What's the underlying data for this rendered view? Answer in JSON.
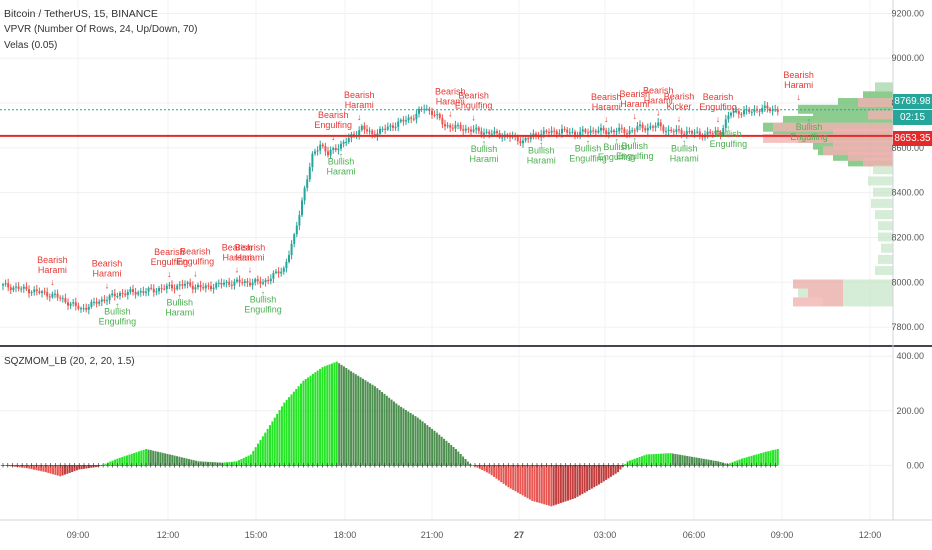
{
  "chart": {
    "title": "Bitcoin / TetherUS, 15, BINANCE",
    "indicators": [
      "VPVR (Number Of Rows, 24, Up/Down, 70)",
      "Velas (0.05)"
    ],
    "price_tags": {
      "last": "8769.98",
      "countdown": "02:15",
      "line": "8653.35"
    },
    "colors": {
      "up": "#26a69a",
      "down": "#ef5350",
      "bullish_label": "#4caf50",
      "bearish_label": "#e53935"
    }
  },
  "oscillator": {
    "title": "SQZMOM_LB (20, 2, 20, 1.5)"
  },
  "chart_data": [
    {
      "type": "candlestick",
      "title": "Bitcoin / TetherUS, 15, BINANCE",
      "y_ticks": [
        "9200.00",
        "9000.00",
        "8800.00",
        "8600.00",
        "8400.00",
        "8200.00",
        "8000.00",
        "7800.00"
      ],
      "x_ticks": [
        "09:00",
        "12:00",
        "15:00",
        "18:00",
        "21:00",
        "27",
        "03:00",
        "06:00",
        "09:00",
        "12:00"
      ],
      "ylim": [
        7720,
        9260
      ],
      "close_path": [
        [
          0,
          7985
        ],
        [
          10,
          7965
        ],
        [
          20,
          7940
        ],
        [
          30,
          7880
        ],
        [
          38,
          7920
        ],
        [
          45,
          7950
        ],
        [
          55,
          7960
        ],
        [
          65,
          7980
        ],
        [
          70,
          7990
        ],
        [
          77,
          7975
        ],
        [
          85,
          7995
        ],
        [
          90,
          8000
        ],
        [
          100,
          8000
        ],
        [
          108,
          8060
        ],
        [
          112,
          8200
        ],
        [
          116,
          8420
        ],
        [
          119,
          8560
        ],
        [
          122,
          8620
        ],
        [
          125,
          8570
        ],
        [
          128,
          8600
        ],
        [
          132,
          8630
        ],
        [
          138,
          8690
        ],
        [
          142,
          8660
        ],
        [
          146,
          8680
        ],
        [
          150,
          8700
        ],
        [
          154,
          8720
        ],
        [
          158,
          8740
        ],
        [
          162,
          8780
        ],
        [
          166,
          8750
        ],
        [
          170,
          8700
        ],
        [
          175,
          8690
        ],
        [
          180,
          8680
        ],
        [
          185,
          8670
        ],
        [
          190,
          8660
        ],
        [
          195,
          8650
        ],
        [
          200,
          8630
        ],
        [
          205,
          8660
        ],
        [
          210,
          8670
        ],
        [
          215,
          8675
        ],
        [
          220,
          8665
        ],
        [
          224,
          8670
        ],
        [
          228,
          8680
        ],
        [
          232,
          8670
        ],
        [
          236,
          8680
        ],
        [
          240,
          8670
        ],
        [
          244,
          8690
        ],
        [
          248,
          8690
        ],
        [
          252,
          8700
        ],
        [
          256,
          8675
        ],
        [
          262,
          8672
        ],
        [
          266,
          8665
        ],
        [
          270,
          8660
        ],
        [
          276,
          8672
        ],
        [
          280,
          8760
        ],
        [
          286,
          8760
        ],
        [
          292,
          8775
        ],
        [
          298,
          8770
        ]
      ],
      "patterns": [
        {
          "label": "Bearish Harami",
          "i": 19,
          "side": "bearish"
        },
        {
          "label": "Bearish Harami",
          "i": 40,
          "side": "bearish"
        },
        {
          "label": "Bullish Engulfing",
          "i": 44,
          "side": "bullish"
        },
        {
          "label": "Bearish Engulfing",
          "i": 64,
          "side": "bearish"
        },
        {
          "label": "Bullish Harami",
          "i": 68,
          "side": "bullish"
        },
        {
          "label": "Bearish Engulfing",
          "i": 74,
          "side": "bearish"
        },
        {
          "label": "Bearish Harami",
          "i": 90,
          "side": "bearish"
        },
        {
          "label": "Bearish Harami",
          "i": 95,
          "side": "bearish"
        },
        {
          "label": "Bullish Engulfing",
          "i": 100,
          "side": "bullish"
        },
        {
          "label": "Bearish Engulfing",
          "i": 127,
          "side": "bearish"
        },
        {
          "label": "Bearish Harami",
          "i": 137,
          "side": "bearish"
        },
        {
          "label": "Bullish Harami",
          "i": 130,
          "side": "bullish"
        },
        {
          "label": "Bearish Harami",
          "i": 172,
          "side": "bearish"
        },
        {
          "label": "Bearish Engulfing",
          "i": 181,
          "side": "bearish"
        },
        {
          "label": "Bullish Harami",
          "i": 185,
          "side": "bullish"
        },
        {
          "label": "Bullish Harami",
          "i": 207,
          "side": "bullish"
        },
        {
          "label": "Bullish Engulfing",
          "i": 225,
          "side": "bullish"
        },
        {
          "label": "Bearish Harami",
          "i": 232,
          "side": "bearish"
        },
        {
          "label": "Bullish Engulfing",
          "i": 236,
          "side": "bullish"
        },
        {
          "label": "Bearish Harami",
          "i": 243,
          "side": "bearish"
        },
        {
          "label": "Bullish Engulfing",
          "i": 243,
          "side": "bullish"
        },
        {
          "label": "Bearish Harami",
          "i": 252,
          "side": "bearish"
        },
        {
          "label": "Bearish Kicker",
          "i": 260,
          "side": "bearish"
        },
        {
          "label": "Bullish Harami",
          "i": 262,
          "side": "bullish"
        },
        {
          "label": "Bearish Engulfing",
          "i": 275,
          "side": "bearish"
        },
        {
          "label": "Bullish Engulfing",
          "i": 279,
          "side": "bullish"
        },
        {
          "label": "Bearish Harami",
          "i": 306,
          "side": "bearish"
        },
        {
          "label": "Bullish Engulfing",
          "i": 310,
          "side": "bullish"
        }
      ],
      "horizontal_lines": [
        8769.98,
        8653.35
      ]
    },
    {
      "type": "histogram",
      "title": "SQZMOM_LB (20, 2, 20, 1.5)",
      "y_ticks": [
        "400.00",
        "200.00",
        "0.00"
      ],
      "ylim": [
        -200,
        430
      ],
      "value_path": [
        [
          0,
          0
        ],
        [
          10,
          -10
        ],
        [
          18,
          -25
        ],
        [
          24,
          -40
        ],
        [
          32,
          -15
        ],
        [
          40,
          -5
        ],
        [
          48,
          25
        ],
        [
          60,
          60
        ],
        [
          70,
          40
        ],
        [
          82,
          15
        ],
        [
          92,
          10
        ],
        [
          98,
          15
        ],
        [
          104,
          40
        ],
        [
          110,
          120
        ],
        [
          118,
          230
        ],
        [
          126,
          310
        ],
        [
          134,
          360
        ],
        [
          140,
          380
        ],
        [
          146,
          345
        ],
        [
          156,
          290
        ],
        [
          166,
          220
        ],
        [
          174,
          175
        ],
        [
          182,
          120
        ],
        [
          190,
          60
        ],
        [
          196,
          5
        ],
        [
          204,
          -30
        ],
        [
          212,
          -80
        ],
        [
          222,
          -130
        ],
        [
          230,
          -150
        ],
        [
          240,
          -120
        ],
        [
          250,
          -70
        ],
        [
          258,
          -25
        ],
        [
          262,
          15
        ],
        [
          270,
          40
        ],
        [
          280,
          45
        ],
        [
          290,
          30
        ],
        [
          300,
          15
        ],
        [
          304,
          5
        ],
        [
          310,
          25
        ],
        [
          320,
          50
        ],
        [
          325,
          60
        ]
      ],
      "bar_count": 326
    }
  ]
}
